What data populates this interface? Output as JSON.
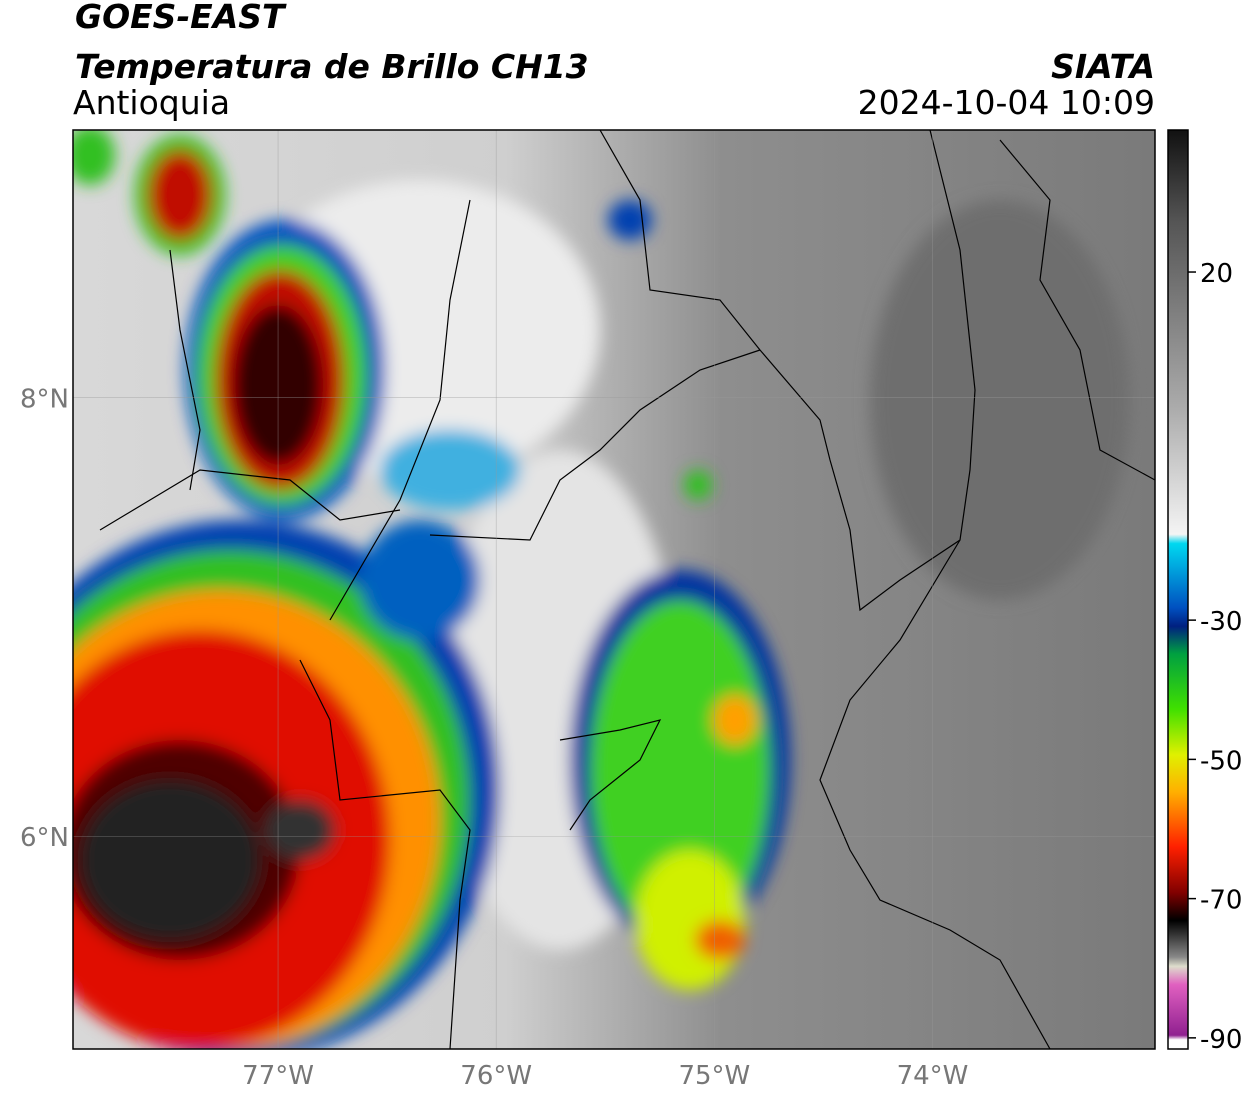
{
  "header": {
    "title": "GOES-EAST",
    "subtitle": "Temperatura de Brillo CH13",
    "region": "Antioquia",
    "source": "SIATA",
    "datetime": "2024-10-04 10:09"
  },
  "map": {
    "lon_range": [
      -77.94,
      -72.98
    ],
    "lat_range": [
      9.22,
      5.03
    ],
    "lon_ticks": [
      {
        "value": -77,
        "label": "77°W"
      },
      {
        "value": -76,
        "label": "76°W"
      },
      {
        "value": -75,
        "label": "75°W"
      },
      {
        "value": -74,
        "label": "74°W"
      }
    ],
    "lat_ticks": [
      {
        "value": 8,
        "label": "8°N"
      },
      {
        "value": 6,
        "label": "6°N"
      }
    ]
  },
  "colorbar": {
    "lim": [
      40.4,
      -91.6
    ],
    "ticks": [
      20,
      -30,
      -50,
      -70,
      -90
    ]
  }
}
